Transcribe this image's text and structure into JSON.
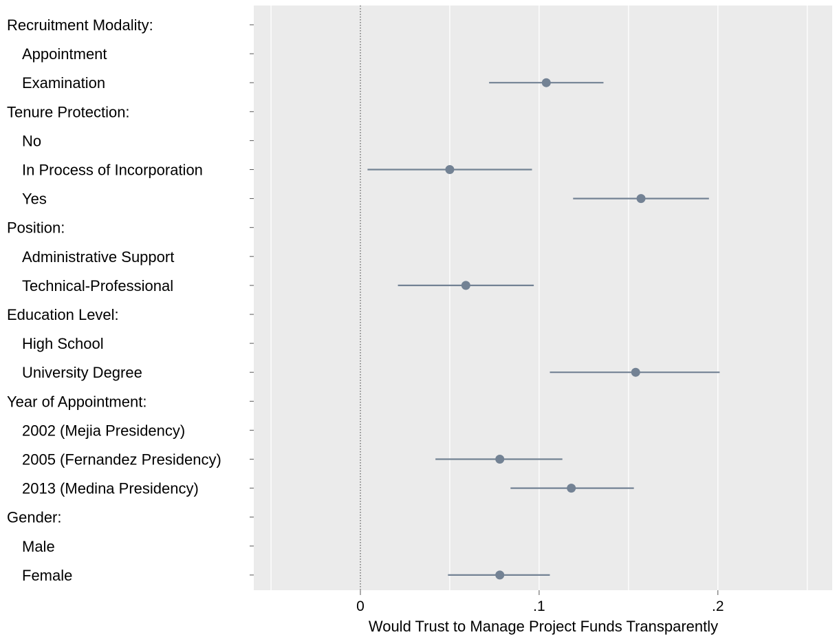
{
  "chart_data": {
    "type": "scatter",
    "subtype": "coefficient-plot-with-confidence-intervals",
    "title": "",
    "xlabel": "Would Trust to Manage Project Funds Transparently",
    "ylabel": "",
    "xlim": [
      -0.06,
      0.265
    ],
    "xticks": [
      {
        "value": 0,
        "label": "0"
      },
      {
        "value": 0.1,
        "label": ".1"
      },
      {
        "value": 0.2,
        "label": ".2"
      }
    ],
    "xgrid": [
      -0.05,
      0.05,
      0.15,
      0.25
    ],
    "reference_line": {
      "x": 0,
      "style": "dotted"
    },
    "grid": true,
    "legend": "none",
    "colors": {
      "background": "#ebebeb",
      "marker": "#738294",
      "grid": "#ffffff"
    },
    "rows": [
      {
        "label": "Recruitment Modality:",
        "header": true
      },
      {
        "label": "Appointment"
      },
      {
        "label": "Examination",
        "estimate": 0.104,
        "lower": 0.072,
        "upper": 0.136
      },
      {
        "label": "Tenure Protection:",
        "header": true
      },
      {
        "label": "No"
      },
      {
        "label": "In Process of Incorporation",
        "estimate": 0.05,
        "lower": 0.004,
        "upper": 0.096
      },
      {
        "label": "Yes",
        "estimate": 0.157,
        "lower": 0.119,
        "upper": 0.195
      },
      {
        "label": "Position:",
        "header": true
      },
      {
        "label": "Administrative Support"
      },
      {
        "label": "Technical-Professional",
        "estimate": 0.059,
        "lower": 0.021,
        "upper": 0.097
      },
      {
        "label": "Education Level:",
        "header": true
      },
      {
        "label": "High School"
      },
      {
        "label": "University Degree",
        "estimate": 0.154,
        "lower": 0.106,
        "upper": 0.201
      },
      {
        "label": "Year of Appointment:",
        "header": true
      },
      {
        "label": "2002 (Mejia Presidency)"
      },
      {
        "label": "2005 (Fernandez Presidency)",
        "estimate": 0.078,
        "lower": 0.042,
        "upper": 0.113
      },
      {
        "label": "2013 (Medina Presidency)",
        "estimate": 0.118,
        "lower": 0.084,
        "upper": 0.153
      },
      {
        "label": "Gender:",
        "header": true
      },
      {
        "label": "Male"
      },
      {
        "label": "Female",
        "estimate": 0.078,
        "lower": 0.049,
        "upper": 0.106
      }
    ]
  }
}
